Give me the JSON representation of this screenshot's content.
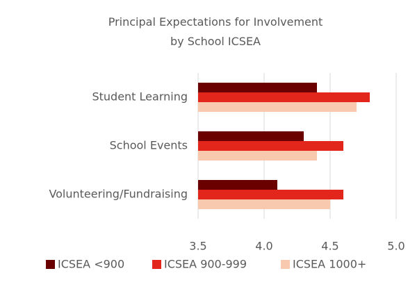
{
  "chart_data": {
    "type": "bar",
    "orientation": "horizontal",
    "title": "Principal Expectations for Involvement by School ICSEA",
    "categories": [
      "Student Learning",
      "School Events",
      "Volunteering/Fundraising"
    ],
    "series": [
      {
        "name": "ICSEA <900",
        "color": "#6b0000",
        "values": [
          4.4,
          4.3,
          4.1
        ]
      },
      {
        "name": "ICSEA 900-999",
        "color": "#e2261c",
        "values": [
          4.8,
          4.6,
          4.6
        ]
      },
      {
        "name": "ICSEA 1000+",
        "color": "#f8c9ae",
        "values": [
          4.7,
          4.4,
          4.5
        ]
      }
    ],
    "xlim": [
      3.5,
      5.0
    ],
    "xticks": [
      3.5,
      {
        "value": 4,
        "label": "4.0"
      },
      4.5,
      {
        "value": 5,
        "label": "5.0"
      }
    ],
    "grid": true,
    "legend": "bottom"
  }
}
